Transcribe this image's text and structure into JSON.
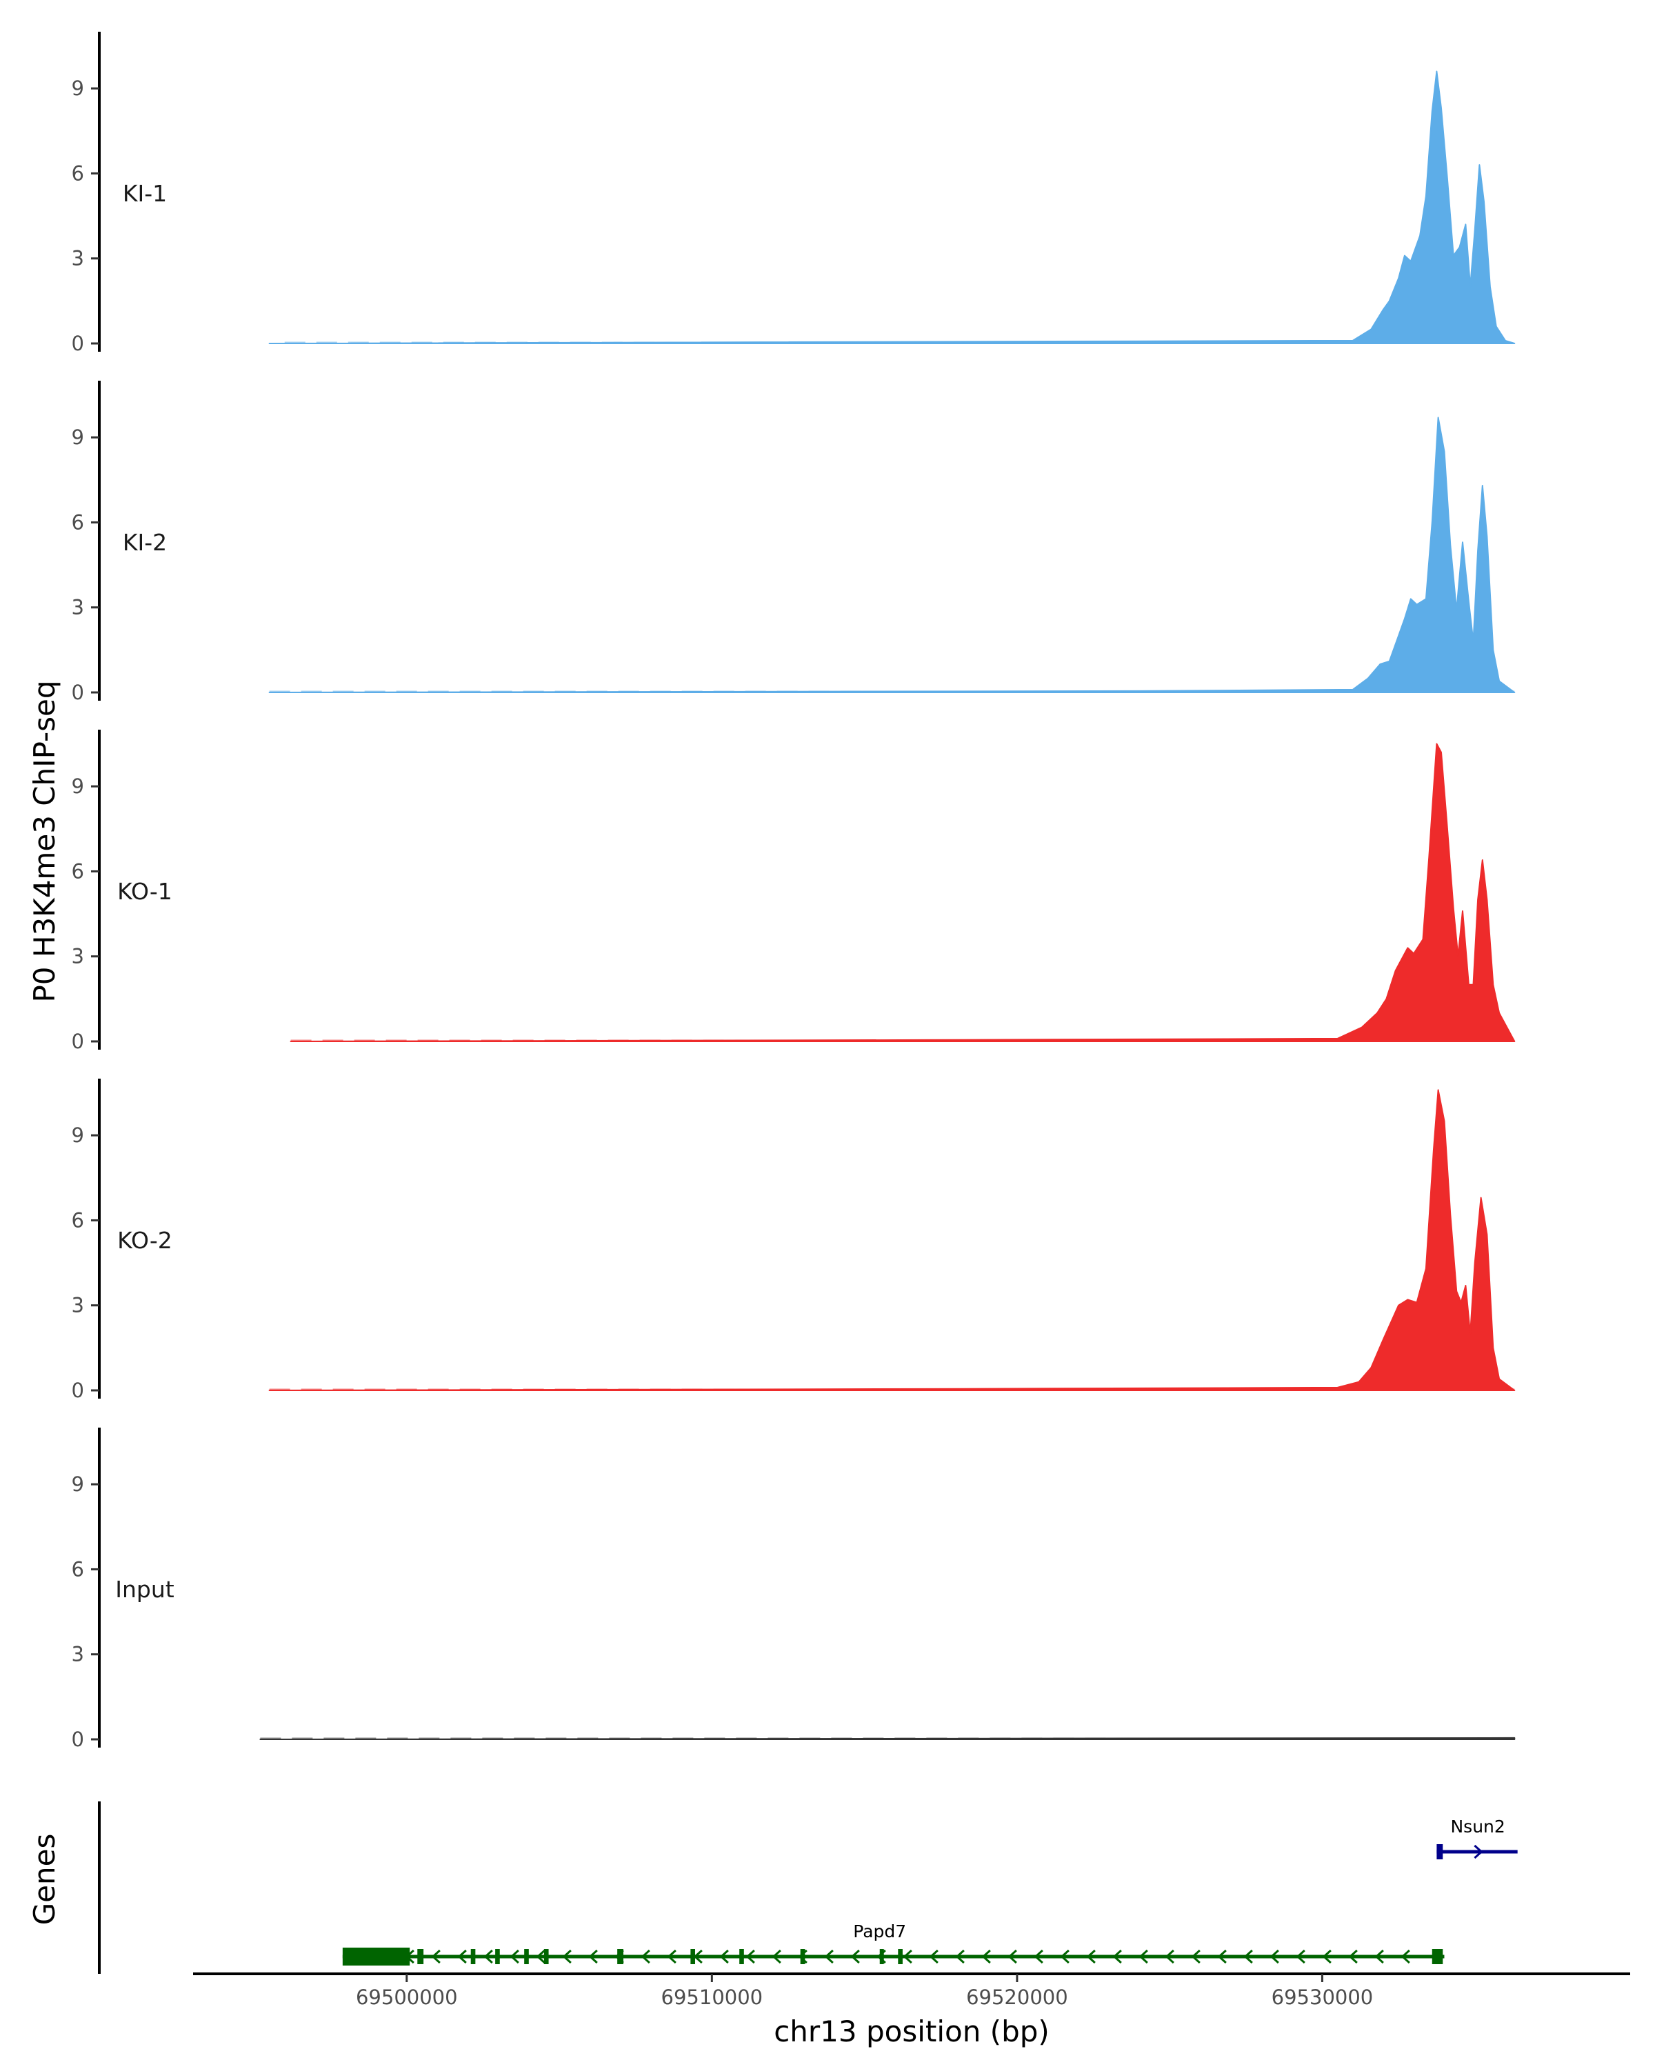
{
  "chart_data": {
    "type": "area",
    "title": "",
    "ylabel": "P0 H3K4me3 ChIP-seq",
    "xlabel": "chr13 position (bp)",
    "genes_label": "Genes",
    "xlim": [
      69493000,
      69540000
    ],
    "x_ticks": [
      69500000,
      69510000,
      69520000,
      69530000
    ],
    "x_tick_labels": [
      "69500000",
      "69510000",
      "69520000",
      "69530000"
    ],
    "ylim": [
      0,
      11
    ],
    "y_ticks": [
      0,
      3,
      6,
      9
    ],
    "y_tick_labels": [
      "0",
      "3",
      "6",
      "9"
    ],
    "colors": {
      "KI": "#5dade8",
      "KO": "#ee2b2b",
      "Input": "#333333",
      "Papd7": "#006400",
      "Nsun2": "#00008b"
    },
    "tracks": [
      {
        "name": "KI-1",
        "color": "#5dade8",
        "start": 69496000,
        "end": 69536300,
        "points": [
          [
            69495500,
            0
          ],
          [
            69531000,
            0.1
          ],
          [
            69531600,
            0.5
          ],
          [
            69532000,
            1.2
          ],
          [
            69532200,
            1.5
          ],
          [
            69532500,
            2.3
          ],
          [
            69532700,
            3.1
          ],
          [
            69532900,
            2.9
          ],
          [
            69533200,
            3.8
          ],
          [
            69533400,
            5.2
          ],
          [
            69533600,
            8.2
          ],
          [
            69533750,
            9.6
          ],
          [
            69533900,
            8.3
          ],
          [
            69534100,
            5.8
          ],
          [
            69534300,
            3.1
          ],
          [
            69534500,
            3.4
          ],
          [
            69534700,
            4.2
          ],
          [
            69534850,
            2.0
          ],
          [
            69535000,
            4.0
          ],
          [
            69535150,
            6.3
          ],
          [
            69535300,
            5.0
          ],
          [
            69535500,
            2.0
          ],
          [
            69535700,
            0.6
          ],
          [
            69536000,
            0.1
          ],
          [
            69536300,
            0
          ]
        ]
      },
      {
        "name": "KI-2",
        "color": "#5dade8",
        "start": 69495500,
        "end": 69536300,
        "points": [
          [
            69495500,
            0
          ],
          [
            69524000,
            0.05
          ],
          [
            69531000,
            0.1
          ],
          [
            69531500,
            0.5
          ],
          [
            69531900,
            1.0
          ],
          [
            69532200,
            1.1
          ],
          [
            69532500,
            2.0
          ],
          [
            69532700,
            2.6
          ],
          [
            69532900,
            3.3
          ],
          [
            69533100,
            3.1
          ],
          [
            69533400,
            3.3
          ],
          [
            69533600,
            6.0
          ],
          [
            69533800,
            9.7
          ],
          [
            69534000,
            8.5
          ],
          [
            69534200,
            5.2
          ],
          [
            69534400,
            2.9
          ],
          [
            69534600,
            5.3
          ],
          [
            69534800,
            3.2
          ],
          [
            69534950,
            1.8
          ],
          [
            69535100,
            5.0
          ],
          [
            69535250,
            7.3
          ],
          [
            69535400,
            5.5
          ],
          [
            69535600,
            1.5
          ],
          [
            69535800,
            0.4
          ],
          [
            69536300,
            0
          ]
        ]
      },
      {
        "name": "KO-1",
        "color": "#ee2b2b",
        "start": 69496200,
        "end": 69536300,
        "points": [
          [
            69496200,
            0
          ],
          [
            69517000,
            0.05
          ],
          [
            69530500,
            0.1
          ],
          [
            69531300,
            0.5
          ],
          [
            69531800,
            1.0
          ],
          [
            69532100,
            1.5
          ],
          [
            69532400,
            2.5
          ],
          [
            69532800,
            3.3
          ],
          [
            69533000,
            3.1
          ],
          [
            69533300,
            3.6
          ],
          [
            69533500,
            6.5
          ],
          [
            69533750,
            10.5
          ],
          [
            69533900,
            10.2
          ],
          [
            69534100,
            7.5
          ],
          [
            69534300,
            4.7
          ],
          [
            69534450,
            3.0
          ],
          [
            69534600,
            4.6
          ],
          [
            69534800,
            2.0
          ],
          [
            69534950,
            2.0
          ],
          [
            69535100,
            5.0
          ],
          [
            69535250,
            6.4
          ],
          [
            69535400,
            5.0
          ],
          [
            69535600,
            2.0
          ],
          [
            69535800,
            1.0
          ],
          [
            69536300,
            0
          ]
        ]
      },
      {
        "name": "KO-2",
        "color": "#ee2b2b",
        "start": 69495500,
        "end": 69536300,
        "points": [
          [
            69495500,
            0
          ],
          [
            69517000,
            0.05
          ],
          [
            69530500,
            0.1
          ],
          [
            69531200,
            0.3
          ],
          [
            69531600,
            0.8
          ],
          [
            69532000,
            1.8
          ],
          [
            69532500,
            3.0
          ],
          [
            69532800,
            3.2
          ],
          [
            69533100,
            3.1
          ],
          [
            69533400,
            4.3
          ],
          [
            69533650,
            8.5
          ],
          [
            69533800,
            10.6
          ],
          [
            69534000,
            9.5
          ],
          [
            69534200,
            6.2
          ],
          [
            69534400,
            3.5
          ],
          [
            69534550,
            3.1
          ],
          [
            69534700,
            3.7
          ],
          [
            69534850,
            2.0
          ],
          [
            69535000,
            4.5
          ],
          [
            69535200,
            6.8
          ],
          [
            69535400,
            5.5
          ],
          [
            69535600,
            1.5
          ],
          [
            69535800,
            0.4
          ],
          [
            69536300,
            0
          ]
        ]
      },
      {
        "name": "Input",
        "color": "#333333",
        "start": 69495200,
        "end": 69536300,
        "points": [
          [
            69495200,
            0
          ],
          [
            69536300,
            0.05
          ]
        ]
      }
    ],
    "genes": [
      {
        "name": "Papd7",
        "strand": "-",
        "color": "#006400",
        "start": 69497900,
        "end": 69534000,
        "label_x": 69515500,
        "exons": [
          [
            69497900,
            69500100
          ],
          [
            69500350,
            69500550
          ],
          [
            69502100,
            69502250
          ],
          [
            69502900,
            69503050
          ],
          [
            69503850,
            69504000
          ],
          [
            69504500,
            69504650
          ],
          [
            69506900,
            69507100
          ],
          [
            69509300,
            69509450
          ],
          [
            69510900,
            69511050
          ],
          [
            69512900,
            69513050
          ],
          [
            69515500,
            69515600
          ],
          [
            69516100,
            69516250
          ],
          [
            69533600,
            69533950
          ]
        ]
      },
      {
        "name": "Nsun2",
        "strand": "+",
        "color": "#00008b",
        "start": 69533750,
        "end": 69536400,
        "label_x": 69535100,
        "exons": [
          [
            69533750,
            69533950
          ]
        ]
      }
    ]
  }
}
